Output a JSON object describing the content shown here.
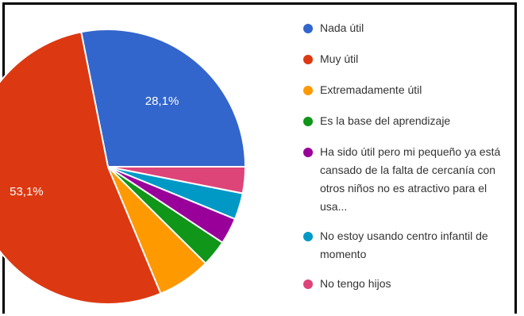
{
  "chart_data": {
    "type": "pie",
    "title": "",
    "slices": [
      {
        "label": "Nada útil",
        "value": 28.1,
        "display": "28,1%",
        "color": "#3366cc"
      },
      {
        "label": "Muy útil",
        "value": 53.1,
        "display": "53,1%",
        "color": "#dc3912"
      },
      {
        "label": "Extremadamente útil",
        "value": 6.3,
        "display": "",
        "color": "#ff9900"
      },
      {
        "label": "Es la base del aprendizaje",
        "value": 3.1,
        "display": "",
        "color": "#109618"
      },
      {
        "label": "Ha sido útil pero mi pequeño ya está cansado de la falta de cercanía con otros niños no es atractivo para el usa...",
        "value": 3.1,
        "display": "",
        "color": "#990099"
      },
      {
        "label": "No estoy usando centro infantil de momento",
        "value": 3.1,
        "display": "",
        "color": "#0099c6"
      },
      {
        "label": "No tengo hijos",
        "value": 3.1,
        "display": "",
        "color": "#dd4477"
      }
    ],
    "legend_position": "right"
  }
}
